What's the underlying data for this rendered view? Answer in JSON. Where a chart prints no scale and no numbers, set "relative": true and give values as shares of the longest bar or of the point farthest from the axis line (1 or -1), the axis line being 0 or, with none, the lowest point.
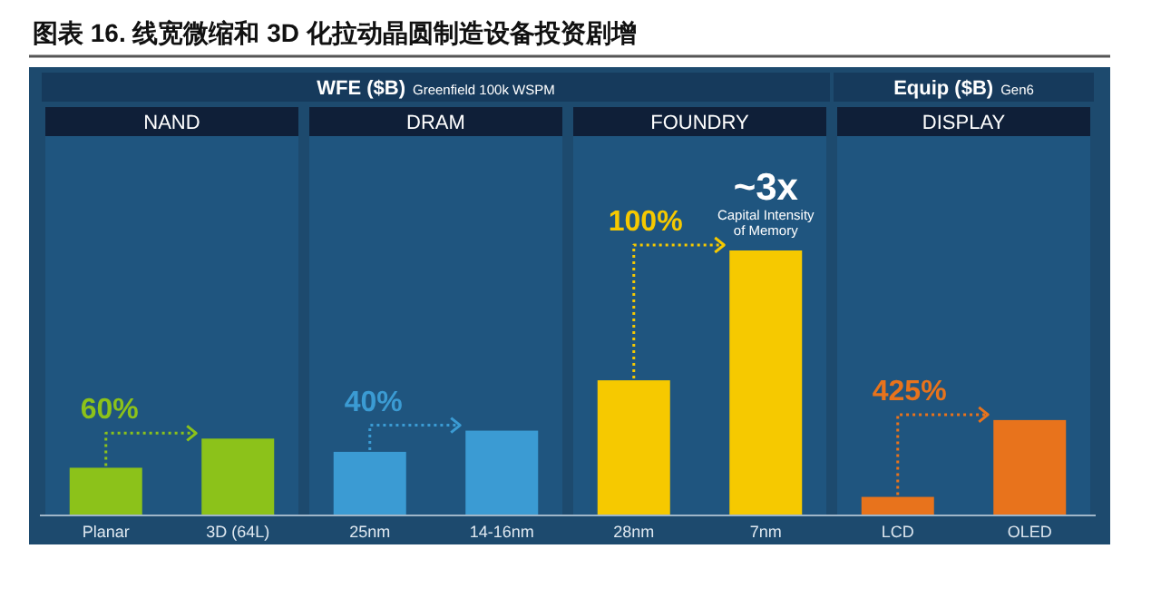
{
  "chart_data": {
    "type": "bar",
    "title": "图表 16. 线宽微缩和 3D 化拉动晶圆制造设备投资剧增",
    "relative": true,
    "categories": [
      "Planar",
      "3D (64L)",
      "25nm",
      "14-16nm",
      "28nm",
      "7nm",
      "LCD",
      "OLED"
    ],
    "values": [
      0.18,
      0.29,
      0.24,
      0.32,
      0.51,
      1,
      0.07,
      0.36
    ],
    "colors": [
      "#8cc21a",
      "#8cc21a",
      "#3b9bd3",
      "#3b9bd3",
      "#f6c900",
      "#f6c900",
      "#e8731c",
      "#e8731c"
    ],
    "annotations": [
      "WFE ($B)",
      "Greenfield 100k WSPM",
      "Equip ($B)",
      "Gen6",
      "NAND",
      "DRAM",
      "FOUNDRY",
      "DISPLAY",
      "60%",
      "40%",
      "100%",
      "425%",
      "~3x",
      "Capital Intensity of Memory"
    ]
  }
}
